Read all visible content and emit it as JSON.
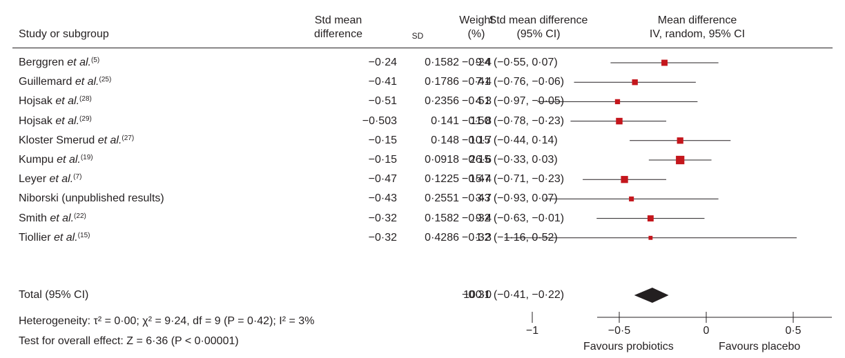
{
  "headers": {
    "study": "Study or subgroup",
    "smd_1": "Std mean",
    "smd_2": "difference",
    "sd": "SD",
    "weight_1": "Weight",
    "weight_2": "(%)",
    "ci_1": "Std mean difference",
    "ci_2": "(95% CI)",
    "plot_1": "Mean difference",
    "plot_2": "IV, random, 95% CI"
  },
  "studies": [
    {
      "name": "Berggren",
      "etal": "et al.",
      "ref": "(5)",
      "smd": "−0·24",
      "sd": "0·1582",
      "weight": "9·4",
      "ci_text": "−0·24 (−0·55, 0·07)",
      "est": -0.24,
      "lo": -0.55,
      "hi": 0.07,
      "w": 9.4
    },
    {
      "name": "Guillemard",
      "etal": "et al.",
      "ref": "(25)",
      "smd": "−0·41",
      "sd": "0·1786",
      "weight": "7·4",
      "ci_text": "−0·41 (−0·76, −0·06)",
      "est": -0.41,
      "lo": -0.76,
      "hi": -0.06,
      "w": 7.4
    },
    {
      "name": "Hojsak",
      "etal": "et al.",
      "ref": "(28)",
      "smd": "−0·51",
      "sd": "0·2356",
      "weight": "4·3",
      "ci_text": "−0·51 (−0·97, −0·05)",
      "est": -0.51,
      "lo": -0.97,
      "hi": -0.05,
      "w": 4.3
    },
    {
      "name": "Hojsak",
      "etal": "et al.",
      "ref": "(29)",
      "smd": "−0·503",
      "sd": "0·141",
      "weight": "11·8",
      "ci_text": "−0·50 (−0·78, −0·23)",
      "est": -0.5,
      "lo": -0.78,
      "hi": -0.23,
      "w": 11.8
    },
    {
      "name": "Kloster Smerud",
      "etal": "et al.",
      "ref": "(27)",
      "smd": "−0·15",
      "sd": "0·148",
      "weight": "10·7",
      "ci_text": "−0·15 (−0·44, 0·14)",
      "est": -0.15,
      "lo": -0.44,
      "hi": 0.14,
      "w": 10.7
    },
    {
      "name": "Kumpu",
      "etal": "et al.",
      "ref": "(19)",
      "smd": "−0·15",
      "sd": "0·0918",
      "weight": "26·6",
      "ci_text": "−0·15 (−0·33, 0·03)",
      "est": -0.15,
      "lo": -0.33,
      "hi": 0.03,
      "w": 26.6
    },
    {
      "name": "Leyer",
      "etal": "et al.",
      "ref": "(7)",
      "smd": "−0·47",
      "sd": "0·1225",
      "weight": "15·4",
      "ci_text": "−0·47 (−0·71, −0·23)",
      "est": -0.47,
      "lo": -0.71,
      "hi": -0.23,
      "w": 15.4
    },
    {
      "name": "Niborski (unpublished results)",
      "etal": "",
      "ref": "",
      "smd": "−0·43",
      "sd": "0·2551",
      "weight": "3·7",
      "ci_text": "−0·43 (−0·93, 0·07)",
      "est": -0.43,
      "lo": -0.93,
      "hi": 0.07,
      "w": 3.7
    },
    {
      "name": "Smith",
      "etal": "et al.",
      "ref": "(22)",
      "smd": "−0·32",
      "sd": "0·1582",
      "weight": "9·4",
      "ci_text": "−0·32 (−0·63, −0·01)",
      "est": -0.32,
      "lo": -0.63,
      "hi": -0.01,
      "w": 9.4
    },
    {
      "name": "Tiollier",
      "etal": "et al.",
      "ref": "(15)",
      "smd": "−0·32",
      "sd": "0·4286",
      "weight": "1·3",
      "ci_text": "−0·32 (−1·16, 0·52)",
      "est": -0.32,
      "lo": -1.16,
      "hi": 0.52,
      "w": 1.3
    }
  ],
  "total": {
    "label": "Total (95% CI)",
    "weight": "100·0",
    "ci_text": "−0·31 (−0·41, −0·22)",
    "est": -0.31,
    "lo": -0.41,
    "hi": -0.22
  },
  "footer": {
    "heterogeneity": "Heterogeneity: τ² = 0·00; χ² = 9·24, df = 9 (P = 0·42); I² = 3%",
    "overall": "Test for overall effect: Z = 6·36 (P < 0·00001)"
  },
  "chart_data": {
    "type": "forest",
    "xlim": [
      -1.2,
      1.25
    ],
    "ticks": [
      -1,
      -0.5,
      0,
      0.5,
      1
    ],
    "tick_labels": [
      "−1",
      "−0·5",
      "0",
      "0·5",
      "1"
    ],
    "favours_left": "Favours probiotics",
    "favours_right": "Favours placebo",
    "colors": {
      "marker": "#c4161c",
      "line": "#231f20",
      "diamond": "#231f20"
    }
  }
}
